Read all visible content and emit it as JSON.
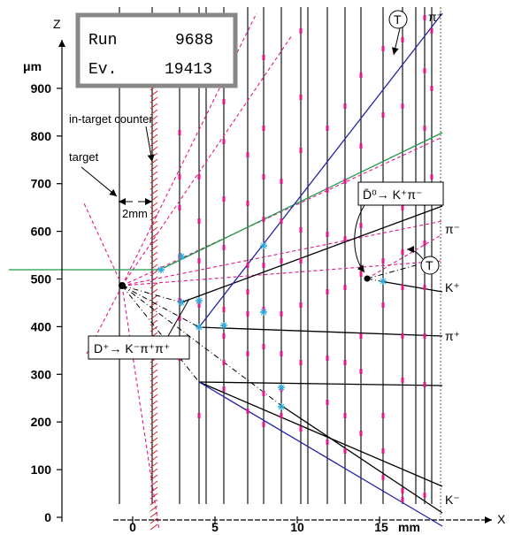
{
  "run_box": {
    "run_label": "Run",
    "run_value": "9688",
    "event_label": "Ev.",
    "event_value": "19413"
  },
  "axes": {
    "z_axis_label": "Z",
    "z_unit": "μm",
    "x_axis_label": "X",
    "x_unit": "mm",
    "z_ticks": [
      "0",
      "100",
      "200",
      "300",
      "400",
      "500",
      "600",
      "700",
      "800",
      "900"
    ],
    "x_ticks": [
      "0",
      "5",
      "10",
      "15"
    ]
  },
  "labels": {
    "in_target_counter": "in-target counter",
    "target": "target",
    "gap": "2mm",
    "d_plus_decay": "D⁺→ K⁻π⁺π⁺",
    "d0bar_decay": "D̄⁰→ K⁺π⁻",
    "tag_T": "T"
  },
  "tracks": [
    {
      "name": "pi-plus-top",
      "label": "π⁺"
    },
    {
      "name": "pi-minus",
      "label": "π⁻"
    },
    {
      "name": "k-plus",
      "label": "K⁺"
    },
    {
      "name": "pi-plus-mid",
      "label": "π⁺"
    },
    {
      "name": "k-minus",
      "label": "K⁻"
    }
  ],
  "colors": {
    "track_blue": "#2424a8",
    "track_green": "#1f9a4a",
    "hit_magenta": "#e0198a",
    "target_red": "#d82020",
    "cyan_hit": "#28a8d8"
  }
}
